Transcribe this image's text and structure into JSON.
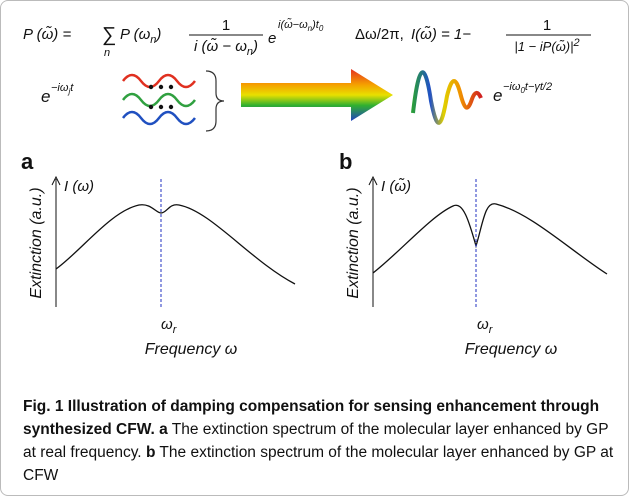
{
  "equation": {
    "lhs": "P (ω̃) =",
    "sum": "∑",
    "sum_index": "n",
    "term": "P (ω",
    "term_sub": "n",
    "term_close": ")",
    "frac_num": "1",
    "frac_den": "i (ω̃ − ω",
    "frac_den_sub": "n",
    "frac_den_close": ")",
    "exp_base": "e",
    "exp": "i(ω̃−ω",
    "exp_sub_n": "n",
    "exp_mid": ")t",
    "exp_sub_0": "0",
    "delta": "Δω/2π,",
    "i_lhs": "I(ω̃) = 1−",
    "i_num": "1",
    "i_den": "|1 − iP(ω̃)|",
    "i_den_sup": "2"
  },
  "schematic": {
    "input_base": "e",
    "input_exp": "−iω",
    "input_exp_sub": "j",
    "input_exp_end": "t",
    "output_base": "e",
    "output_exp": "−iω",
    "output_exp_sub": "0",
    "output_exp_end": "t−γt/2"
  },
  "panels": [
    {
      "label": "a",
      "y_label": "I (ω)",
      "y_axis_title": "Extinction (a.u.)",
      "x_axis_title": "Frequency ω",
      "marker": "ω",
      "marker_sub": "r"
    },
    {
      "label": "b",
      "y_label": "I (ω̃)",
      "y_axis_title": "Extinction (a.u.)",
      "x_axis_title": "Frequency ω",
      "marker": "ω",
      "marker_sub": "r"
    }
  ],
  "caption": {
    "title": "Fig. 1 Illustration of damping compensation for sensing enhancement through synthesized CFW.",
    "parts": [
      {
        "label": "a",
        "text": " The extinction spectrum of the molecular layer enhanced by GP at real frequency."
      },
      {
        "label": "b",
        "text": " The extinction spectrum of the molecular layer enhanced by GP at CFW"
      }
    ]
  }
}
